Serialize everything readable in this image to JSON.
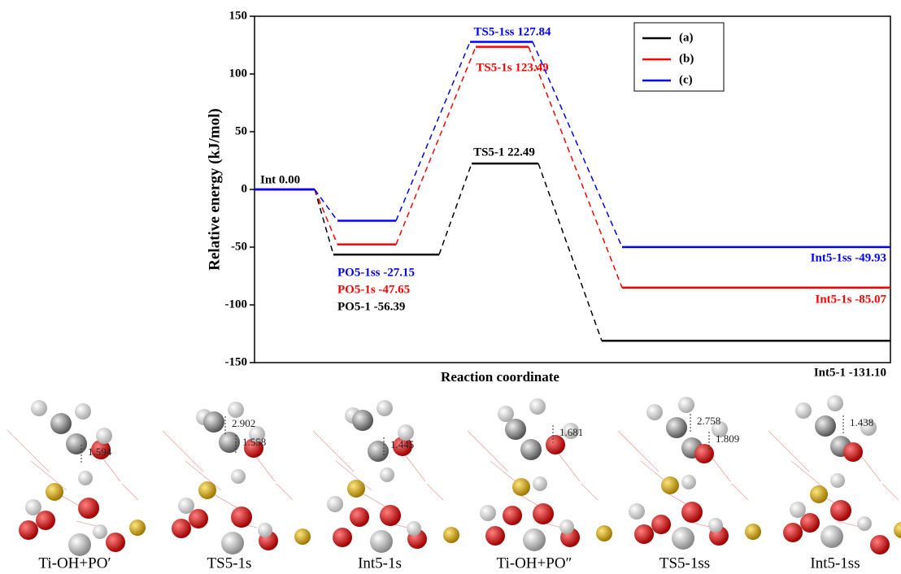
{
  "chart_data": {
    "type": "energy-profile",
    "ylabel": "Relative energy (kJ/mol)",
    "xlabel": "Reaction coordinate",
    "ylim": [
      -150,
      150
    ],
    "yticks": [
      150,
      100,
      50,
      0,
      -50,
      -100,
      -150
    ],
    "legend": "upper right",
    "series": [
      {
        "name": "(a)",
        "color": "#000000",
        "values": [
          0.0,
          -56.39,
          22.49,
          -131.1
        ],
        "value_labels": [
          "Int 0.00",
          "PO5-1 -56.39",
          "TS5-1 22.49",
          "Int5-1 -131.10"
        ]
      },
      {
        "name": "(b)",
        "color": "#ff0000",
        "values": [
          0.0,
          -47.65,
          123.49,
          -85.07
        ],
        "value_labels": [
          null,
          "PO5-1s -47.65",
          "TS5-1s 123.49",
          "Int5-1s -85.07"
        ]
      },
      {
        "name": "(c)",
        "color": "#0000ff",
        "values": [
          0.0,
          -27.15,
          127.84,
          -49.93
        ],
        "value_labels": [
          null,
          "PO5-1ss -27.15",
          "TS5-1ss 127.84",
          "Int5-1ss -49.93"
        ]
      }
    ]
  },
  "structures": [
    {
      "caption": "Ti-OH+PO′",
      "distances": [
        "1.594"
      ]
    },
    {
      "caption": "TS5-1s",
      "distances": [
        "2.902",
        "1.558"
      ]
    },
    {
      "caption": "Int5-1s",
      "distances": [
        "1.445"
      ]
    },
    {
      "caption": "Ti-OH+PO″",
      "distances": [
        "1.681"
      ]
    },
    {
      "caption": "TS5-1ss",
      "distances": [
        "2.758",
        "1.809"
      ]
    },
    {
      "caption": "Int5-1ss",
      "distances": [
        "1.438"
      ]
    }
  ]
}
